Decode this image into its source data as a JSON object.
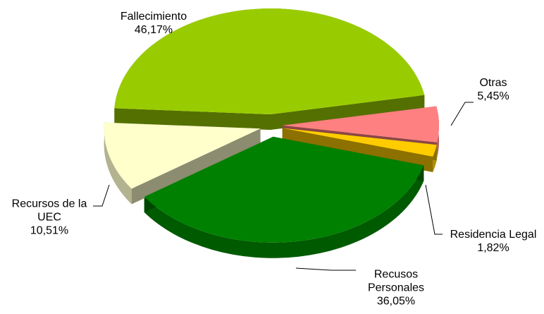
{
  "chart_data": {
    "type": "pie3d",
    "categories": [
      "Fallecimiento",
      "Otras",
      "Residencia Legal",
      "Recusos Personales",
      "Recursos de la UEC"
    ],
    "values": [
      46.17,
      5.45,
      1.82,
      36.05,
      10.51
    ],
    "value_labels": [
      "46,17%",
      "5,45%",
      "1,82%",
      "36,05%",
      "10,51%"
    ],
    "colors": [
      "#99cc00",
      "#ff8080",
      "#ffcc00",
      "#008000",
      "#ffffcc"
    ]
  }
}
